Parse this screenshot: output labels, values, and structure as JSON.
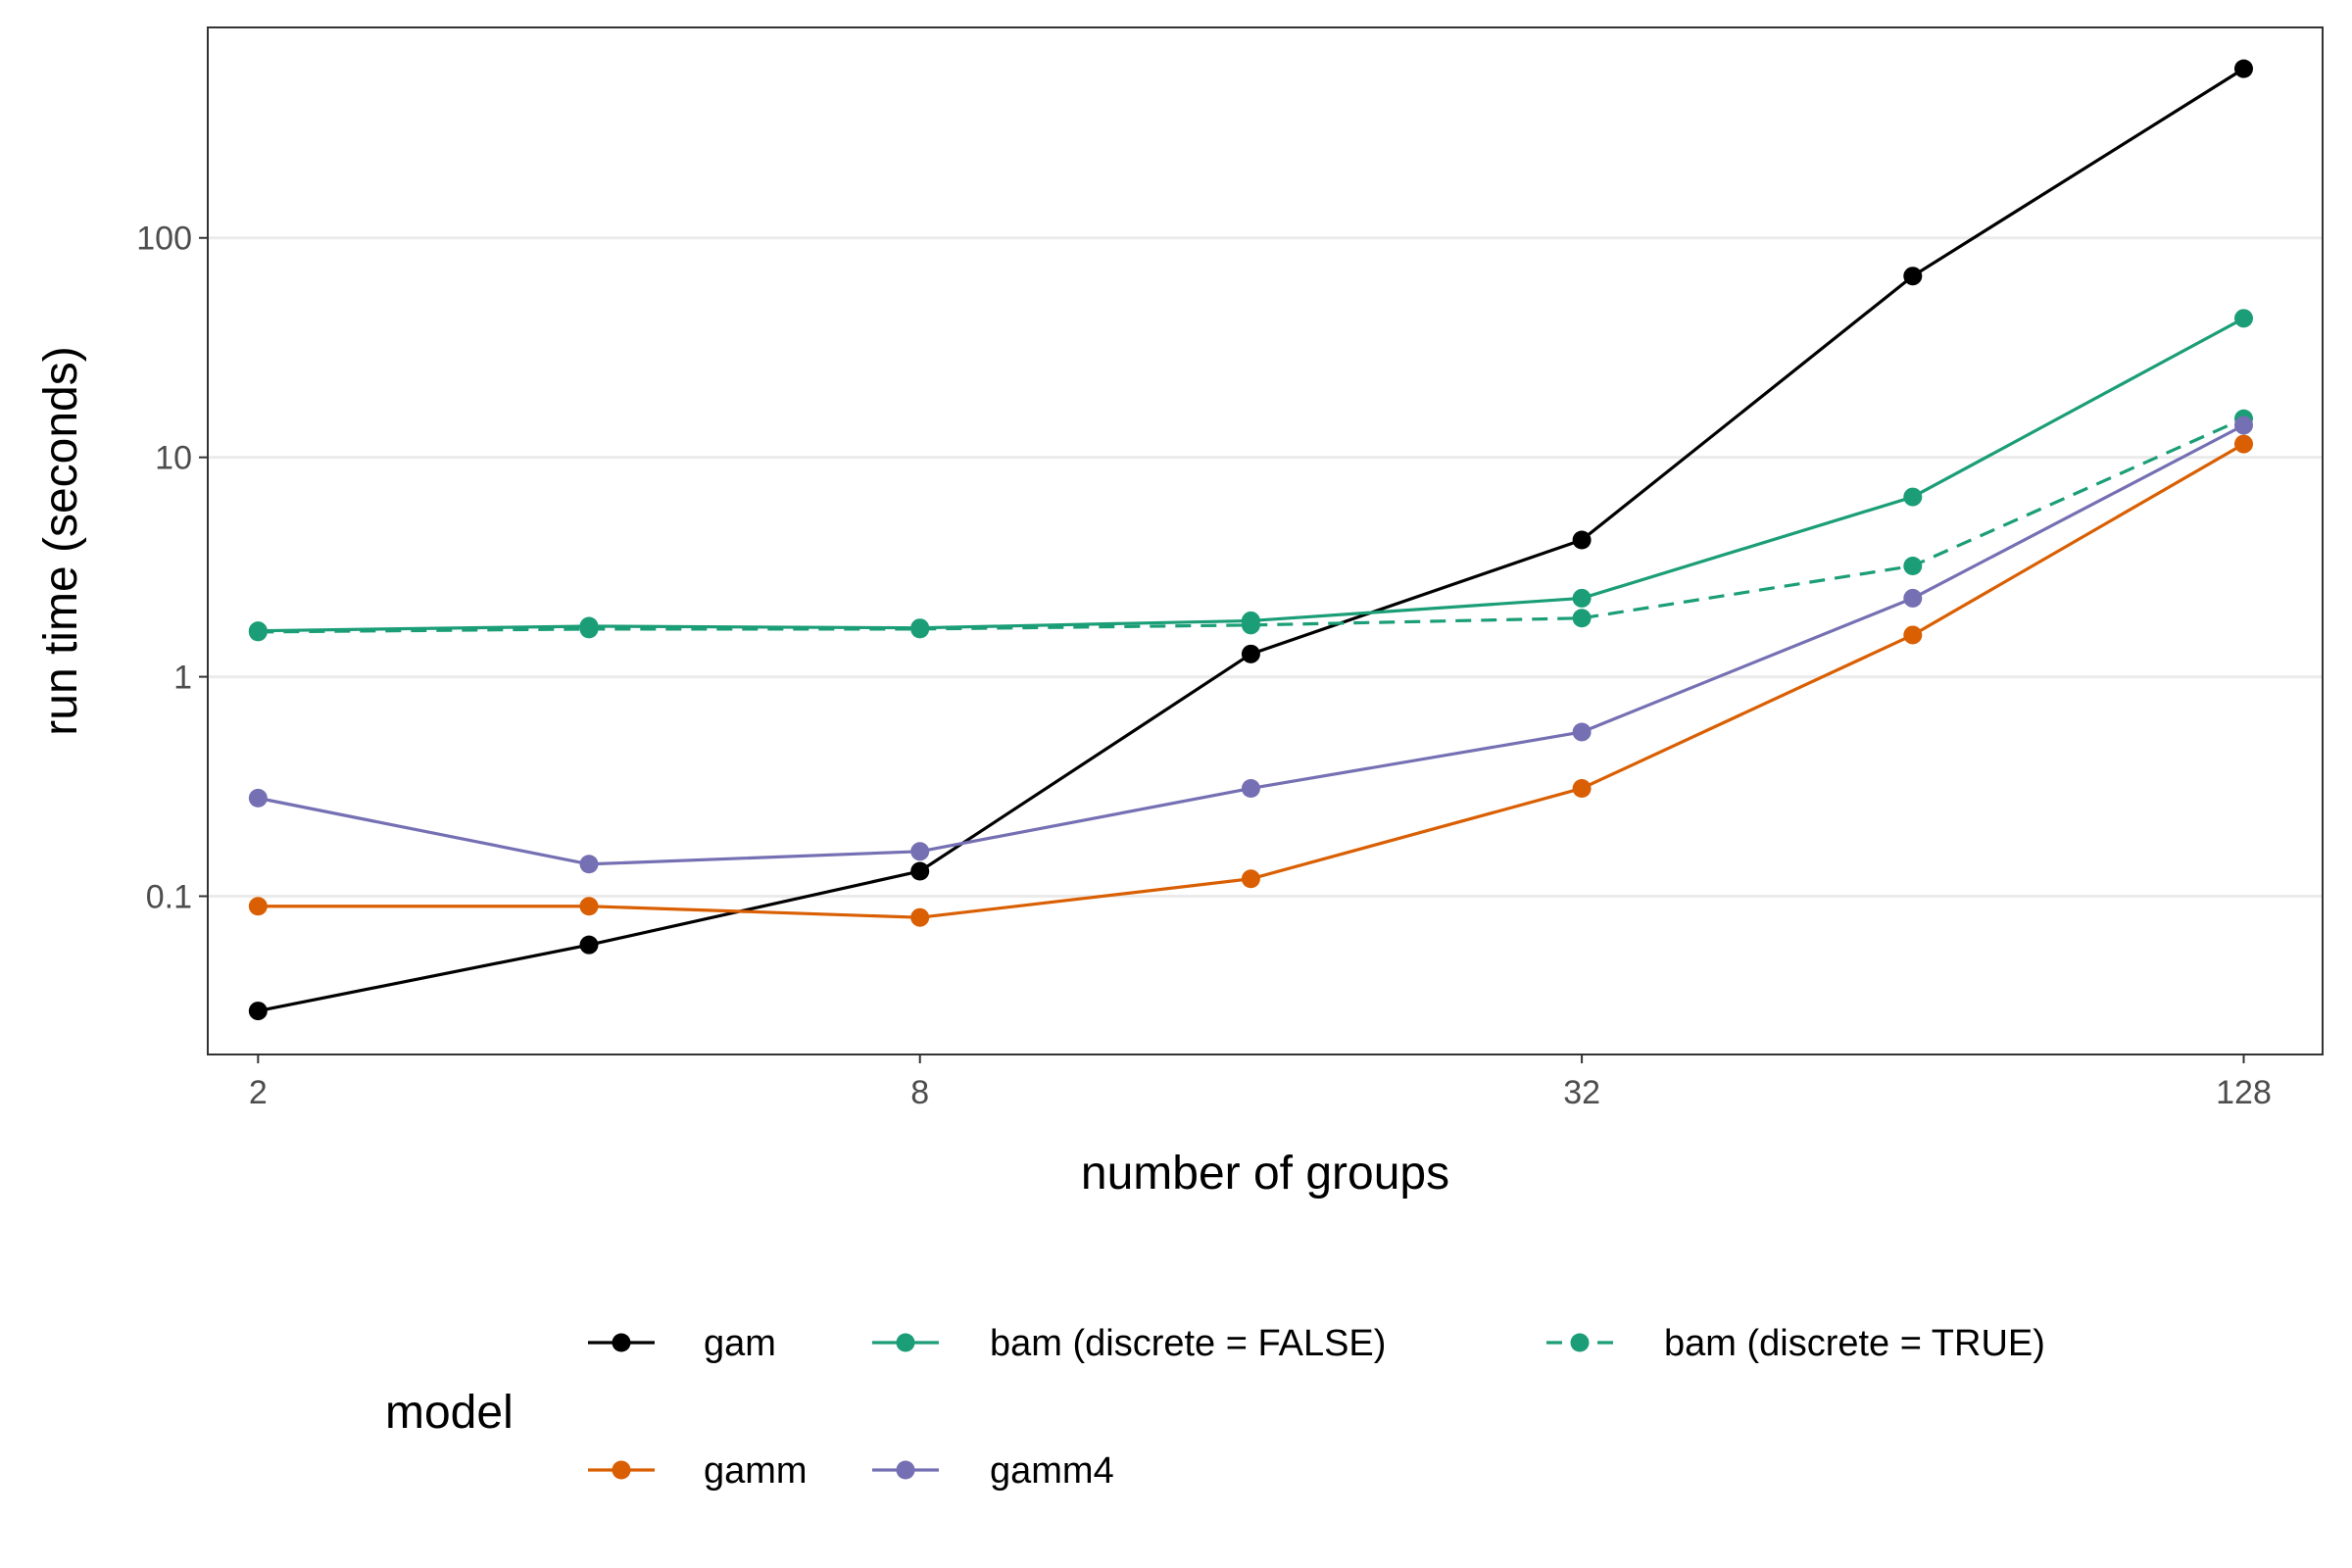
{
  "chart_data": {
    "type": "line",
    "xlabel": "number of groups",
    "ylabel": "run time (seconds)",
    "x_scale": "log2",
    "y_scale": "log10",
    "x_ticks": [
      2,
      8,
      32,
      128
    ],
    "x_tick_labels": [
      "2",
      "8",
      "32",
      "128"
    ],
    "y_ticks": [
      0.1,
      1,
      10,
      100
    ],
    "y_tick_labels": [
      "0.1",
      "1",
      "10",
      "100"
    ],
    "xlim": [
      1.8,
      151
    ],
    "ylim": [
      0.019,
      910
    ],
    "grid": "horizontal major only",
    "legend_position": "bottom",
    "legend_title": "model",
    "x": [
      2,
      4,
      8,
      16,
      32,
      64,
      128
    ],
    "series": [
      {
        "name": "gam",
        "color": "#000000",
        "linetype": "solid",
        "values": [
          0.03,
          0.06,
          0.13,
          1.27,
          4.2,
          67,
          590
        ]
      },
      {
        "name": "bam (discrete = FALSE)",
        "color": "#1b9e77",
        "linetype": "solid",
        "values": [
          1.62,
          1.7,
          1.67,
          1.8,
          2.28,
          6.6,
          43
        ]
      },
      {
        "name": "bam (discrete = TRUE)",
        "color": "#1b9e77",
        "linetype": "dashed",
        "values": [
          1.6,
          1.65,
          1.65,
          1.72,
          1.85,
          3.2,
          15
        ]
      },
      {
        "name": "gamm",
        "color": "#d95f02",
        "linetype": "solid",
        "values": [
          0.09,
          0.09,
          0.08,
          0.12,
          0.31,
          1.55,
          11.5
        ]
      },
      {
        "name": "gamm4",
        "color": "#7570b3",
        "linetype": "solid",
        "values": [
          0.28,
          0.14,
          0.16,
          0.31,
          0.56,
          2.28,
          14
        ]
      }
    ]
  }
}
